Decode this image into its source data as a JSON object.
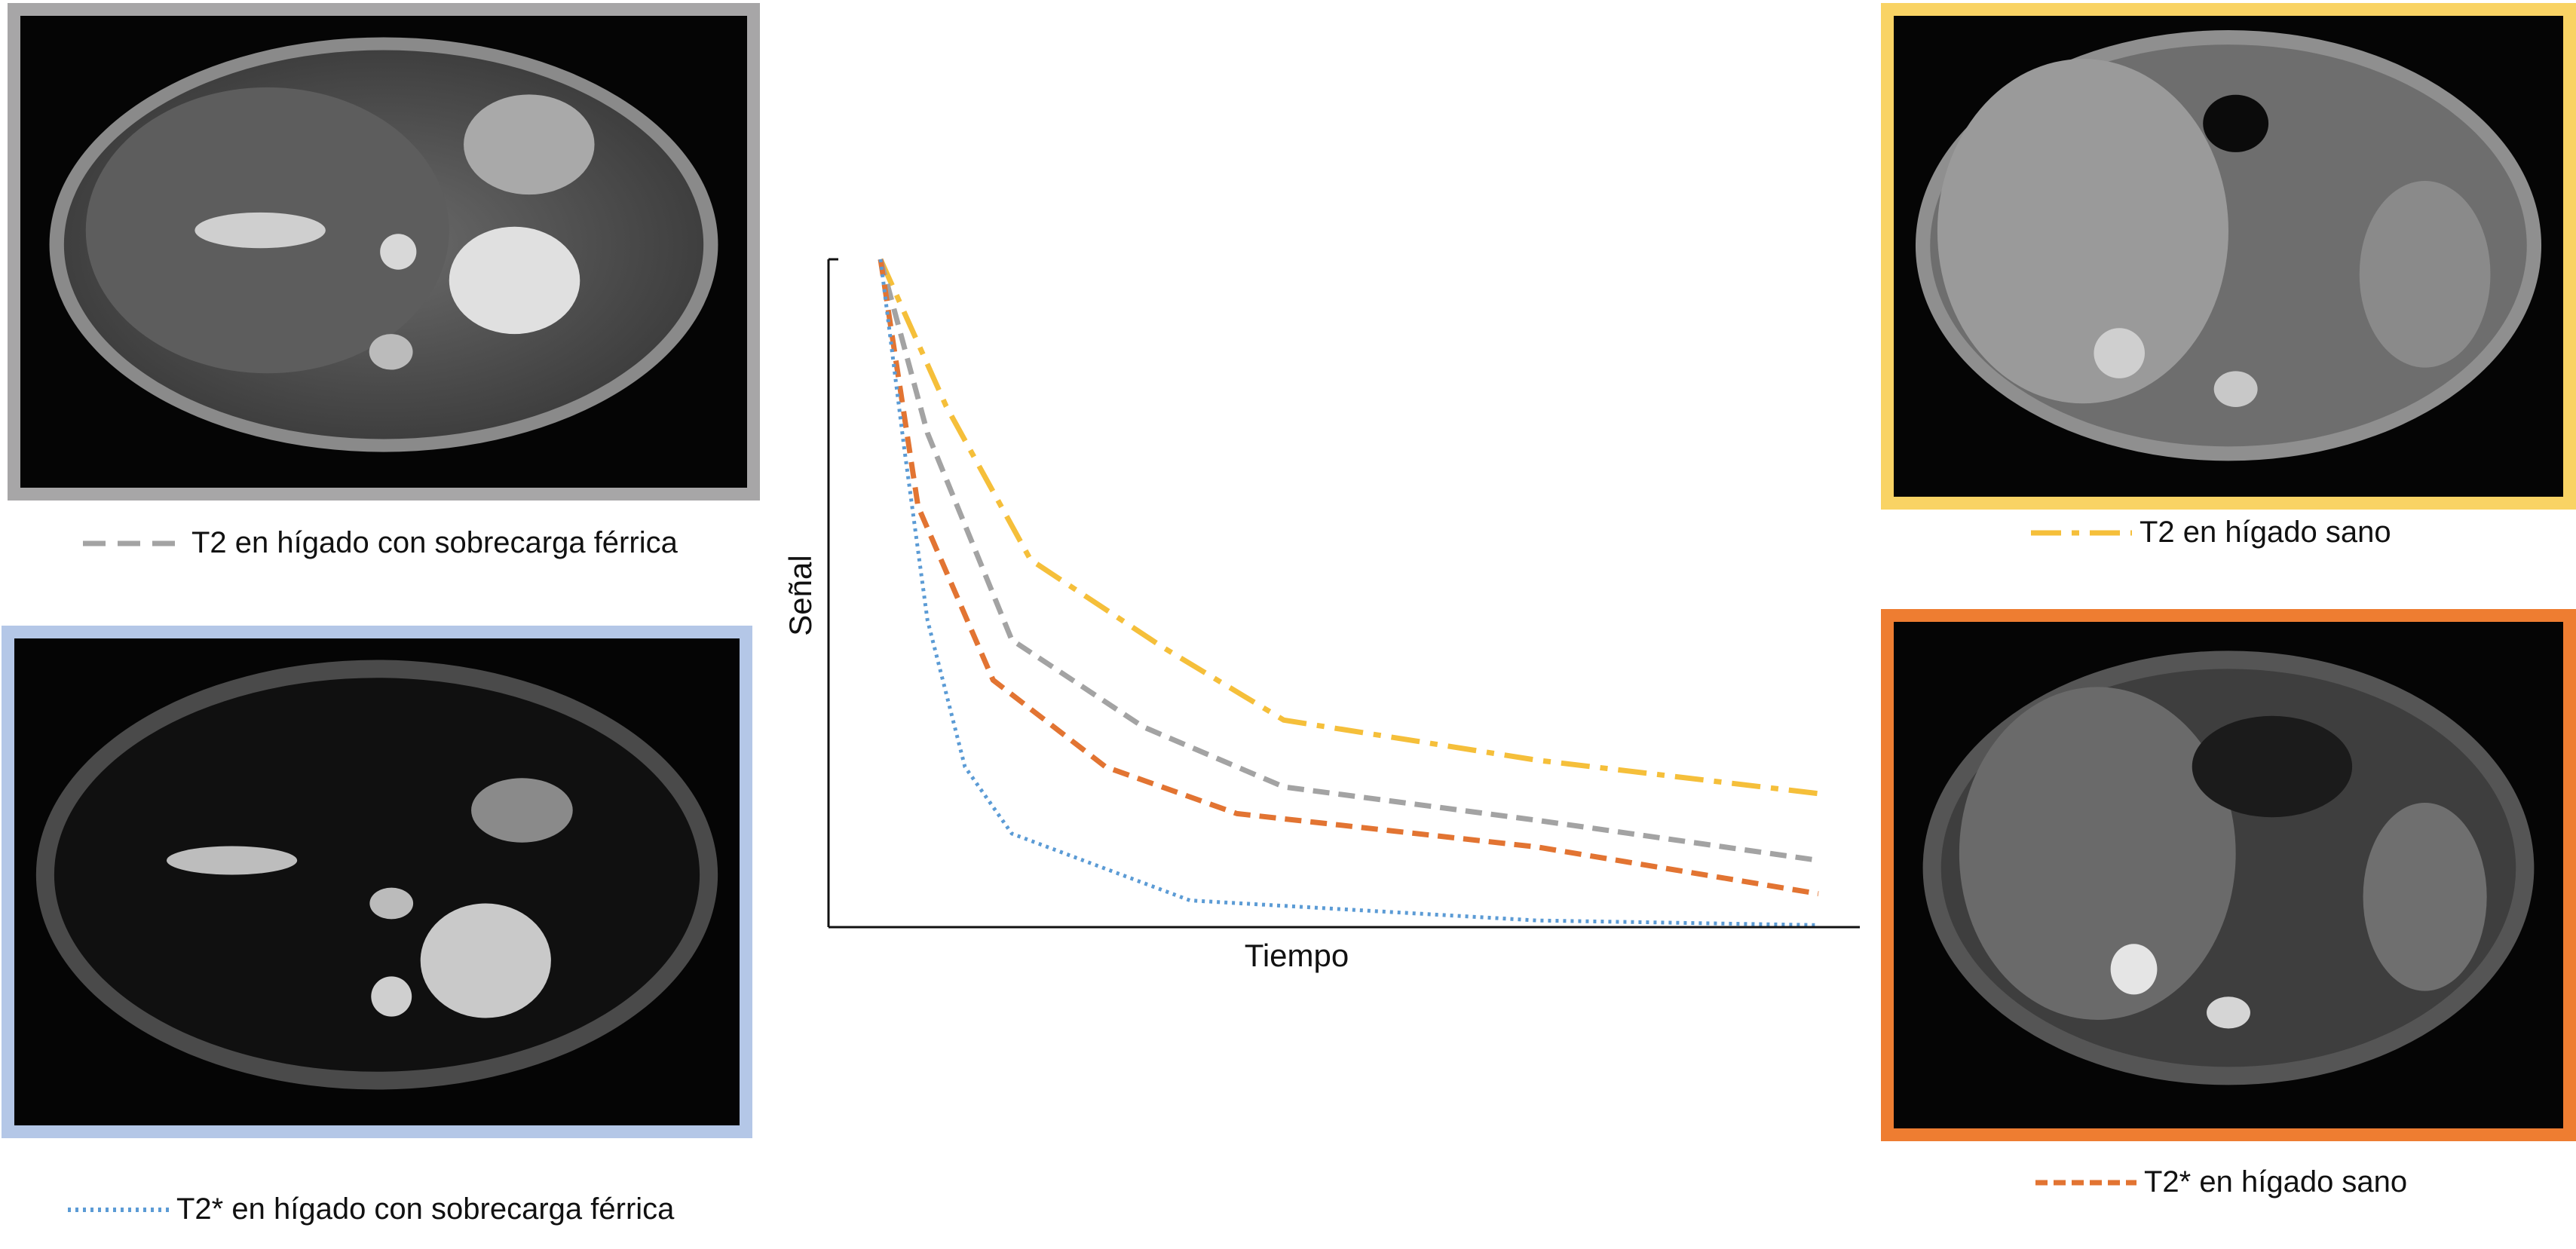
{
  "figure": {
    "legends": {
      "t2_iron": "T2 en hígado con sobrecarga férrica",
      "t2star_iron": "T2* en hígado con sobrecarga férrica",
      "t2_healthy": "T2 en hígado sano",
      "t2star_healthy": "T2* en hígado sano"
    },
    "frame_colors": {
      "t2_iron": "#a7a6a7",
      "t2star_iron": "#b4c7e7",
      "t2_healthy": "#f9d364",
      "t2star_healthy": "#ee7d31"
    },
    "images": {
      "t2_iron": "axial MRI liver scan",
      "t2star_iron": "axial MRI liver scan",
      "t2_healthy": "axial MRI liver scan",
      "t2star_healthy": "axial MRI liver scan"
    }
  },
  "chart_data": {
    "type": "line",
    "title": "",
    "xlabel": "Tiempo",
    "ylabel": "Señal",
    "xlim": [
      0,
      100
    ],
    "ylim": [
      0,
      100
    ],
    "grid": false,
    "ticks": false,
    "series": [
      {
        "name": "T2 en hígado sano",
        "color": "#f5bf3a",
        "dash": "dashdot",
        "x": [
          0,
          7,
          16,
          30,
          43,
          70,
          100
        ],
        "y": [
          100,
          78,
          55,
          42,
          31,
          25,
          20
        ]
      },
      {
        "name": "T2 en hígado con sobrecarga férrica",
        "color": "#a3a3a3",
        "dash": "dashed",
        "x": [
          0,
          5,
          14,
          28,
          43,
          70,
          100
        ],
        "y": [
          100,
          74,
          43,
          30,
          21,
          16,
          10
        ]
      },
      {
        "name": "T2* en hígado sano",
        "color": "#e27432",
        "dash": "dashed",
        "x": [
          0,
          4,
          12,
          24,
          38,
          70,
          100
        ],
        "y": [
          100,
          63,
          37,
          24,
          17,
          12,
          5
        ]
      },
      {
        "name": "T2* en hígado con sobrecarga férrica",
        "color": "#5b9bd5",
        "dash": "dotted",
        "x": [
          0,
          2.5,
          5,
          9,
          14,
          33,
          70,
          100
        ],
        "y": [
          100,
          72,
          46,
          24,
          14,
          4,
          1,
          0.3
        ]
      }
    ]
  }
}
